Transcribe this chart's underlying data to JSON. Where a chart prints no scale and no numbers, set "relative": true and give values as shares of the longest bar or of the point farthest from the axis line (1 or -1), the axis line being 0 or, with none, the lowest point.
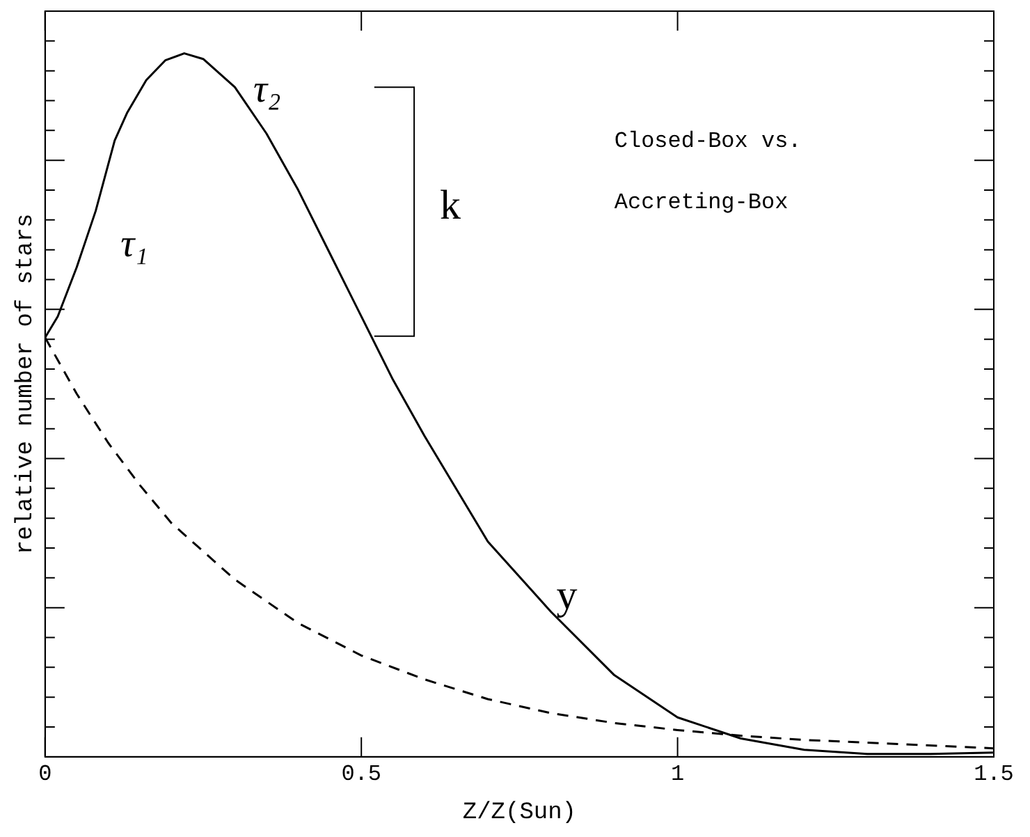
{
  "chart_data": {
    "type": "line",
    "xlabel": "Z/Z(Sun)",
    "ylabel": "relative number of stars",
    "relative": true,
    "xlim": [
      0,
      1.5
    ],
    "xticks": [
      0,
      0.5,
      1,
      1.5
    ],
    "grid": false,
    "legend": false,
    "marker": "none",
    "series": [
      {
        "color": "#000000",
        "line_style": "solid",
        "x": [
          0,
          0.02,
          0.05,
          0.08,
          0.11,
          0.13,
          0.16,
          0.19,
          0.22,
          0.25,
          0.3,
          0.35,
          0.4,
          0.45,
          0.5,
          0.55,
          0.6,
          0.7,
          0.8,
          0.9,
          1.0,
          1.1,
          1.2,
          1.3,
          1.4,
          1.5
        ],
        "values": [
          0.596,
          0.626,
          0.696,
          0.776,
          0.876,
          0.916,
          0.962,
          0.99,
          1,
          0.992,
          0.952,
          0.886,
          0.806,
          0.716,
          0.626,
          0.536,
          0.456,
          0.306,
          0.206,
          0.116,
          0.056,
          0.026,
          0.01,
          0.004,
          0.004,
          0.006
        ]
      },
      {
        "color": "#000000",
        "line_style": "dashed",
        "x": [
          0,
          0.05,
          0.1,
          0.15,
          0.2,
          0.3,
          0.4,
          0.5,
          0.6,
          0.7,
          0.8,
          0.9,
          1.0,
          1.1,
          1.2,
          1.3,
          1.5
        ],
        "values": [
          0.596,
          0.516,
          0.446,
          0.386,
          0.332,
          0.252,
          0.19,
          0.144,
          0.11,
          0.082,
          0.062,
          0.048,
          0.038,
          0.03,
          0.024,
          0.02,
          0.012
        ]
      }
    ],
    "annotations": [
      "τ₁",
      "τ₂",
      "k",
      "y",
      "Closed-Box vs.\nAccreting-Box"
    ]
  }
}
